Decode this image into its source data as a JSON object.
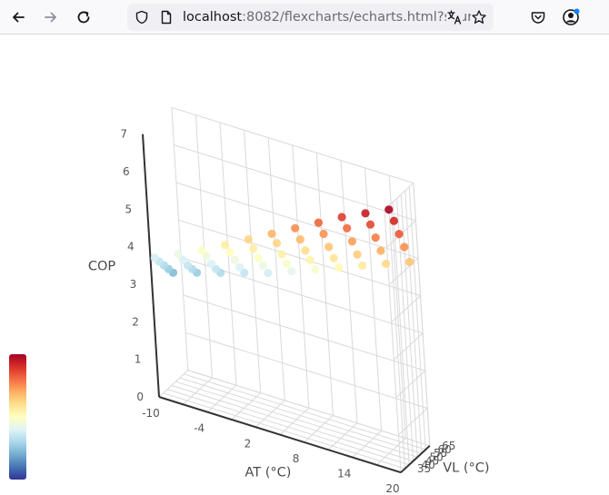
{
  "browser": {
    "url_host": "localhost",
    "url_rest": ":8082/flexcharts/echarts.html?sourc",
    "icons": [
      "back-arrow-icon",
      "forward-arrow-icon",
      "reload-icon",
      "shield-icon",
      "page-icon",
      "translate-icon",
      "bookmark-star-icon",
      "pocket-icon",
      "account-icon"
    ]
  },
  "chart_data": {
    "type": "scatter3d",
    "x_axis": {
      "label": "AT (°C)",
      "ticks": [
        "-10",
        "-4",
        "2",
        "8",
        "14",
        "20"
      ],
      "range": [
        -10,
        20
      ]
    },
    "y_axis": {
      "label": "VL (°C)",
      "ticks": [
        "35",
        "40",
        "45",
        "50",
        "55",
        "60",
        "65"
      ],
      "range": [
        30,
        65
      ]
    },
    "z_axis": {
      "label": "COP",
      "ticks": [
        "0",
        "1",
        "2",
        "3",
        "4",
        "5",
        "6",
        "7"
      ],
      "range": [
        0,
        7
      ]
    },
    "grid": true,
    "visual_map": {
      "colors": [
        "#313695",
        "#4575b4",
        "#74add1",
        "#abd9e9",
        "#e0f3f8",
        "#ffffbf",
        "#fee090",
        "#fdae61",
        "#f46d43",
        "#d73027",
        "#a50026"
      ],
      "min": 1.5,
      "max": 7
    },
    "at_values": [
      -10,
      -7,
      -4,
      -1,
      2,
      5,
      8,
      11,
      14,
      17,
      20
    ],
    "vl_values": [
      35,
      40,
      45,
      50,
      55
    ],
    "cop": [
      [
        3.6,
        3.4,
        3.2,
        3.0,
        2.8
      ],
      [
        3.9,
        3.65,
        3.4,
        3.2,
        3.0
      ],
      [
        4.2,
        3.95,
        3.65,
        3.4,
        3.2
      ],
      [
        4.55,
        4.25,
        3.95,
        3.65,
        3.4
      ],
      [
        4.9,
        4.55,
        4.2,
        3.9,
        3.6
      ],
      [
        5.25,
        4.9,
        4.5,
        4.15,
        3.85
      ],
      [
        5.6,
        5.2,
        4.8,
        4.45,
        4.1
      ],
      [
        5.95,
        5.55,
        5.1,
        4.7,
        4.35
      ],
      [
        6.3,
        5.9,
        5.45,
        5.0,
        4.6
      ],
      [
        6.6,
        6.2,
        5.75,
        5.3,
        4.85
      ],
      [
        6.9,
        6.5,
        6.05,
        5.6,
        5.1
      ]
    ]
  }
}
